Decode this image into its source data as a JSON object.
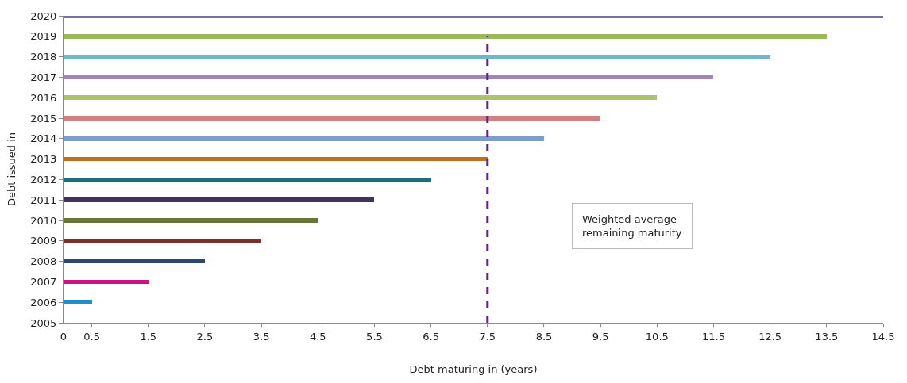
{
  "chart_data": {
    "type": "bar",
    "orientation": "horizontal",
    "xlabel": "Debt maturing in (years)",
    "ylabel": "Debt issued in",
    "categories": [
      "2020",
      "2019",
      "2018",
      "2017",
      "2016",
      "2015",
      "2014",
      "2013",
      "2012",
      "2011",
      "2010",
      "2009",
      "2008",
      "2007",
      "2006",
      "2005"
    ],
    "values": [
      14.5,
      13.5,
      12.5,
      11.5,
      10.5,
      9.5,
      8.5,
      7.5,
      6.5,
      5.5,
      4.5,
      3.5,
      2.5,
      1.5,
      0.5,
      null
    ],
    "colors": [
      "#7a6fa0",
      "#9bbb59",
      "#72b6cc",
      "#9f85b8",
      "#a9c46c",
      "#d28080",
      "#7a9fcf",
      "#c0701c",
      "#1f6f78",
      "#3f3459",
      "#607a35",
      "#7a2f30",
      "#244a6f",
      "#c8157a",
      "#1e8fcf",
      "#1e8fcf"
    ],
    "xlim": [
      0,
      14.5
    ],
    "xticks": [
      0,
      0.5,
      1.5,
      2.5,
      3.5,
      4.5,
      5.5,
      6.5,
      7.5,
      8.5,
      9.5,
      10.5,
      11.5,
      12.5,
      13.5,
      14.5
    ],
    "ref_lines": [
      {
        "axis": "x",
        "value": 7.5,
        "color": "#5a2a7a",
        "line_style": "dashed"
      }
    ],
    "annotations": [
      "Weighted average\nremaining maturity"
    ],
    "legend": false
  }
}
